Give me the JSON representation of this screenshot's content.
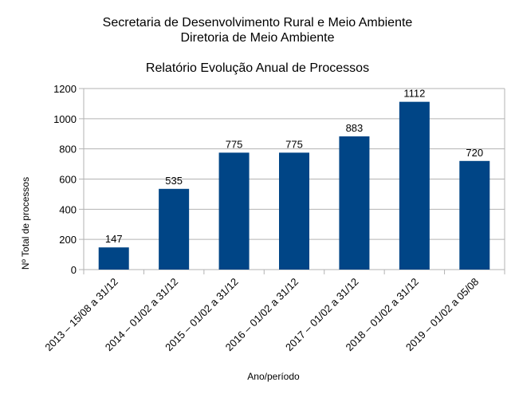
{
  "chart_data": {
    "type": "bar",
    "title_lines": [
      "Secretaria de Desenvolvimento Rural e Meio Ambiente",
      "Diretoria de Meio Ambiente"
    ],
    "subtitle": "Relatório Evolução Anual de Processos",
    "categories": [
      "2013 – 15/08 a 31/12",
      "2014 – 01/02 a 31/12",
      "2015 – 01/02 a 31/12",
      "2016 – 01/02 a 31/12",
      "2017 – 01/02 a 31/12",
      "2018 – 01/02 a 31/12",
      "2019 – 01/02 a 05/08"
    ],
    "values": [
      147,
      535,
      775,
      775,
      883,
      1112,
      720
    ],
    "xlabel": "Ano/período",
    "ylabel": "Nº Total de processos",
    "ylim": [
      0,
      1200
    ],
    "yticks": [
      0,
      200,
      400,
      600,
      800,
      1000,
      1200
    ],
    "grid": true,
    "legend": "none",
    "bar_color": "#004586"
  }
}
